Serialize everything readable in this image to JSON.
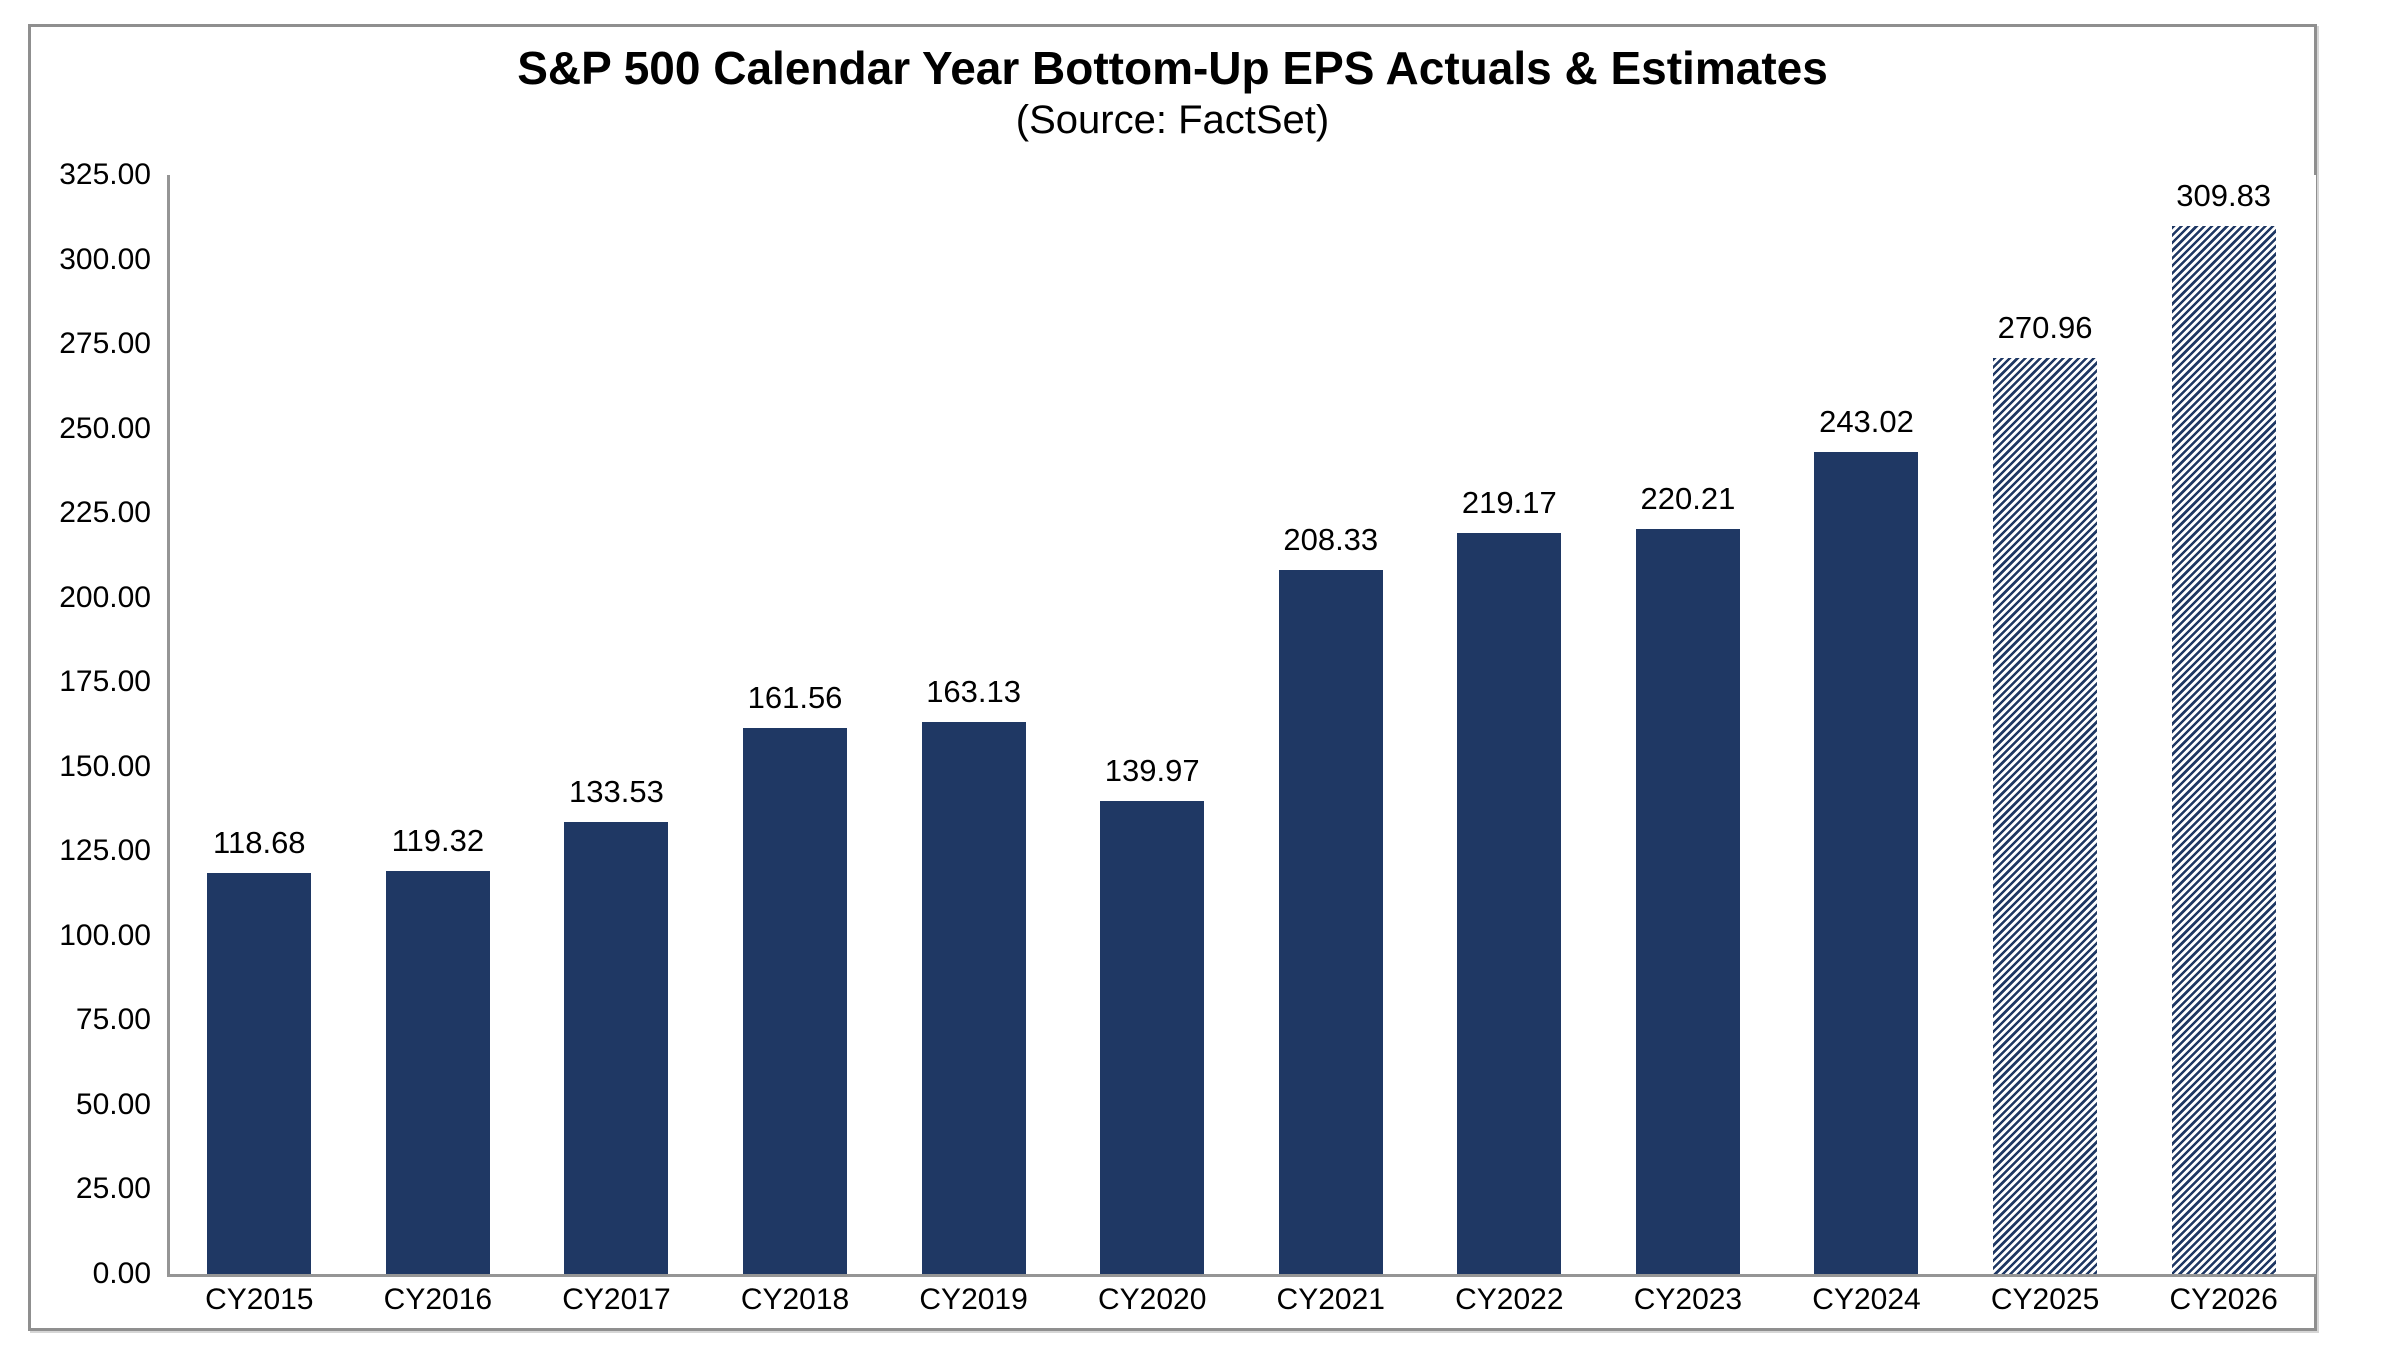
{
  "chart_data": {
    "type": "bar",
    "title": "S&P 500 Calendar Year Bottom-Up EPS Actuals & Estimates",
    "subtitle": "(Source: FactSet)",
    "categories": [
      "CY2015",
      "CY2016",
      "CY2017",
      "CY2018",
      "CY2019",
      "CY2020",
      "CY2021",
      "CY2022",
      "CY2023",
      "CY2024",
      "CY2025",
      "CY2026"
    ],
    "values": [
      118.68,
      119.32,
      133.53,
      161.56,
      163.13,
      139.97,
      208.33,
      219.17,
      220.21,
      243.02,
      270.96,
      309.83
    ],
    "data_labels": [
      "118.68",
      "119.32",
      "133.53",
      "161.56",
      "163.13",
      "139.97",
      "208.33",
      "219.17",
      "220.21",
      "243.02",
      "270.96",
      "309.83"
    ],
    "is_estimate": [
      false,
      false,
      false,
      false,
      false,
      false,
      false,
      false,
      false,
      false,
      true,
      true
    ],
    "estimate_style": "diagonal-hatch",
    "xlabel": "",
    "ylabel": "",
    "ylim": [
      0,
      325
    ],
    "y_tick_step": 25,
    "y_tick_labels": [
      "325.00",
      "300.00",
      "275.00",
      "250.00",
      "225.00",
      "200.00",
      "175.00",
      "150.00",
      "125.00",
      "100.00",
      "75.00",
      "50.00",
      "25.00",
      "0.00"
    ],
    "grid": false,
    "legend": "none",
    "colors": {
      "bar": "#1F3864",
      "axis_line": "#959595",
      "frame_border": "#8F8F8F",
      "text": "#000000",
      "background": "#FFFFFF"
    }
  }
}
